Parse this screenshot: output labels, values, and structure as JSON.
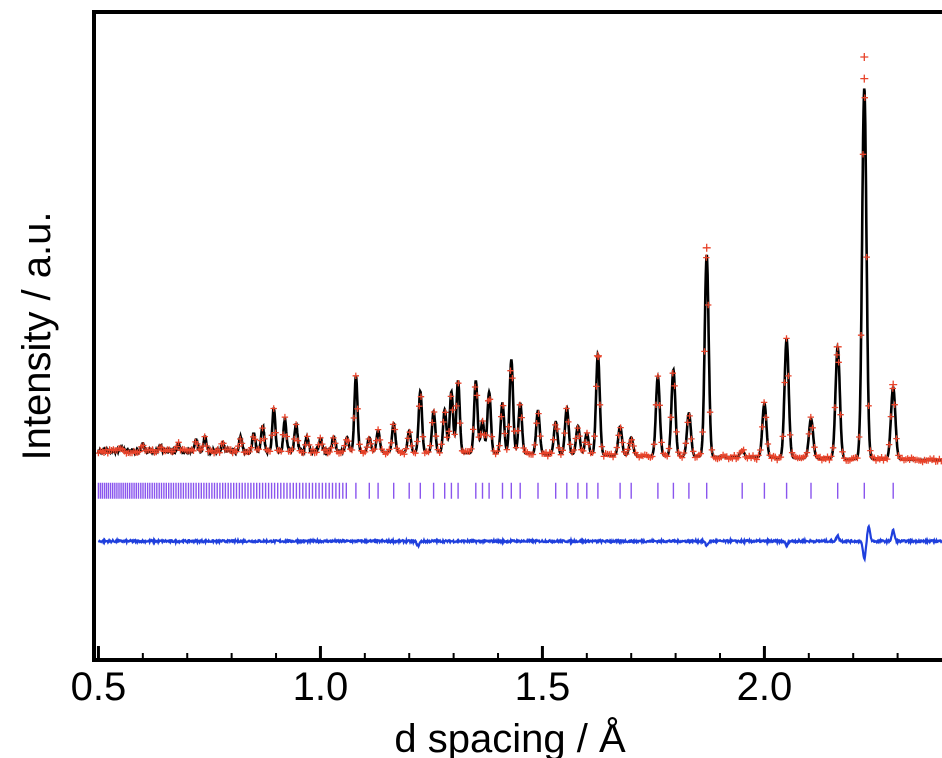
{
  "chart_data": {
    "type": "line",
    "title": "",
    "xlabel": "d spacing / Å",
    "ylabel": "Intensity / a.u.",
    "xlim": [
      0.49,
      2.4
    ],
    "x_ticks": [
      0.5,
      1.0,
      1.5,
      2.0
    ],
    "x_tick_labels": [
      "0.5",
      "1.0",
      "1.5",
      "2.0"
    ],
    "ylim": [
      -0.55,
      1.25
    ],
    "y_ticks_shown": false,
    "grid": false,
    "legend": "none",
    "colors": {
      "observed": "#e8432a",
      "calculated": "#000000",
      "difference": "#1f3fdd",
      "reflections": "#8a55ee",
      "axes": "#000000"
    },
    "background": {
      "x": [
        0.5,
        1.0,
        1.5,
        2.0,
        2.4
      ],
      "y": [
        0.03,
        0.03,
        0.022,
        0.012,
        0.005
      ]
    },
    "peaks": [
      {
        "d": 0.55,
        "h": 0.01
      },
      {
        "d": 0.6,
        "h": 0.02
      },
      {
        "d": 0.64,
        "h": 0.014
      },
      {
        "d": 0.68,
        "h": 0.02
      },
      {
        "d": 0.72,
        "h": 0.03
      },
      {
        "d": 0.74,
        "h": 0.04
      },
      {
        "d": 0.78,
        "h": 0.022
      },
      {
        "d": 0.82,
        "h": 0.04
      },
      {
        "d": 0.85,
        "h": 0.05
      },
      {
        "d": 0.87,
        "h": 0.07
      },
      {
        "d": 0.895,
        "h": 0.12
      },
      {
        "d": 0.92,
        "h": 0.09
      },
      {
        "d": 0.945,
        "h": 0.075
      },
      {
        "d": 0.97,
        "h": 0.04
      },
      {
        "d": 1.0,
        "h": 0.035
      },
      {
        "d": 1.03,
        "h": 0.04
      },
      {
        "d": 1.06,
        "h": 0.04
      },
      {
        "d": 1.08,
        "h": 0.21
      },
      {
        "d": 1.11,
        "h": 0.04
      },
      {
        "d": 1.13,
        "h": 0.06
      },
      {
        "d": 1.165,
        "h": 0.08
      },
      {
        "d": 1.2,
        "h": 0.06
      },
      {
        "d": 1.225,
        "h": 0.17
      },
      {
        "d": 1.255,
        "h": 0.115
      },
      {
        "d": 1.28,
        "h": 0.12
      },
      {
        "d": 1.295,
        "h": 0.17
      },
      {
        "d": 1.31,
        "h": 0.2
      },
      {
        "d": 1.35,
        "h": 0.2
      },
      {
        "d": 1.365,
        "h": 0.09
      },
      {
        "d": 1.38,
        "h": 0.17
      },
      {
        "d": 1.41,
        "h": 0.14
      },
      {
        "d": 1.43,
        "h": 0.26
      },
      {
        "d": 1.45,
        "h": 0.14
      },
      {
        "d": 1.49,
        "h": 0.12
      },
      {
        "d": 1.53,
        "h": 0.09
      },
      {
        "d": 1.555,
        "h": 0.13
      },
      {
        "d": 1.58,
        "h": 0.08
      },
      {
        "d": 1.6,
        "h": 0.06
      },
      {
        "d": 1.625,
        "h": 0.28
      },
      {
        "d": 1.675,
        "h": 0.08
      },
      {
        "d": 1.7,
        "h": 0.05
      },
      {
        "d": 1.76,
        "h": 0.22
      },
      {
        "d": 1.795,
        "h": 0.24
      },
      {
        "d": 1.83,
        "h": 0.12
      },
      {
        "d": 1.87,
        "h": 0.56
      },
      {
        "d": 1.95,
        "h": 0.02
      },
      {
        "d": 2.0,
        "h": 0.15
      },
      {
        "d": 2.05,
        "h": 0.33
      },
      {
        "d": 2.105,
        "h": 0.11
      },
      {
        "d": 2.165,
        "h": 0.31
      },
      {
        "d": 2.225,
        "h": 1.03
      },
      {
        "d": 2.29,
        "h": 0.2
      }
    ],
    "observed_extra": [
      {
        "d": 2.225,
        "y": 1.125
      },
      {
        "d": 2.225,
        "y": 1.065
      },
      {
        "d": 2.29,
        "y": 0.215
      },
      {
        "d": 1.87,
        "y": 0.595
      },
      {
        "d": 2.165,
        "y": 0.32
      },
      {
        "d": 1.625,
        "y": 0.295
      }
    ],
    "reflections": [
      2.29,
      2.225,
      2.165,
      2.105,
      2.05,
      2.0,
      1.95,
      1.87,
      1.83,
      1.795,
      1.76,
      1.7,
      1.675,
      1.625,
      1.6,
      1.58,
      1.555,
      1.53,
      1.49,
      1.45,
      1.43,
      1.41,
      1.38,
      1.365,
      1.35,
      1.31,
      1.295,
      1.28,
      1.255,
      1.225,
      1.2,
      1.165,
      1.13,
      1.11,
      1.08
    ],
    "reflections_dense_range": [
      0.5,
      1.06
    ],
    "reflections_y": -0.08,
    "difference_offset": -0.22,
    "difference_features": [
      {
        "d": 2.225,
        "amp": -0.05
      },
      {
        "d": 2.235,
        "amp": 0.04
      },
      {
        "d": 2.29,
        "amp": 0.03
      },
      {
        "d": 2.05,
        "amp": -0.012
      },
      {
        "d": 1.87,
        "amp": -0.012
      },
      {
        "d": 1.22,
        "amp": -0.012
      },
      {
        "d": 2.165,
        "amp": 0.015
      }
    ]
  }
}
